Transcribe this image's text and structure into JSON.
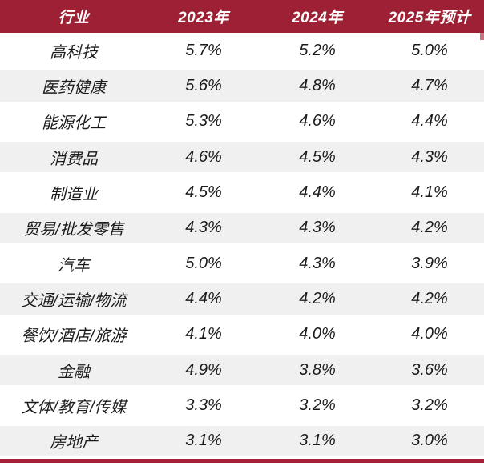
{
  "chart_data": {
    "type": "table",
    "columns": [
      "行业",
      "2023年",
      "2024年",
      "2025年预计"
    ],
    "rows": [
      [
        "高科技",
        "5.7%",
        "5.2%",
        "5.0%"
      ],
      [
        "医药健康",
        "5.6%",
        "4.8%",
        "4.7%"
      ],
      [
        "能源化工",
        "5.3%",
        "4.6%",
        "4.4%"
      ],
      [
        "消费品",
        "4.6%",
        "4.5%",
        "4.3%"
      ],
      [
        "制造业",
        "4.5%",
        "4.4%",
        "4.1%"
      ],
      [
        "贸易/批发零售",
        "4.3%",
        "4.3%",
        "4.2%"
      ],
      [
        "汽车",
        "5.0%",
        "4.3%",
        "3.9%"
      ],
      [
        "交通/运输/物流",
        "4.4%",
        "4.2%",
        "4.2%"
      ],
      [
        "餐饮/酒店/旅游",
        "4.1%",
        "4.0%",
        "4.0%"
      ],
      [
        "金融",
        "4.9%",
        "3.8%",
        "3.6%"
      ],
      [
        "文体/教育/传媒",
        "3.3%",
        "3.2%",
        "3.2%"
      ],
      [
        "房地产",
        "3.1%",
        "3.1%",
        "3.0%"
      ]
    ]
  },
  "colors": {
    "header_bg": "#9E2035",
    "header_text": "#FFFFFF",
    "row_alt_bg": "#F0F0F0",
    "body_text": "#1B1B1B",
    "accent_line": "#A12239"
  }
}
